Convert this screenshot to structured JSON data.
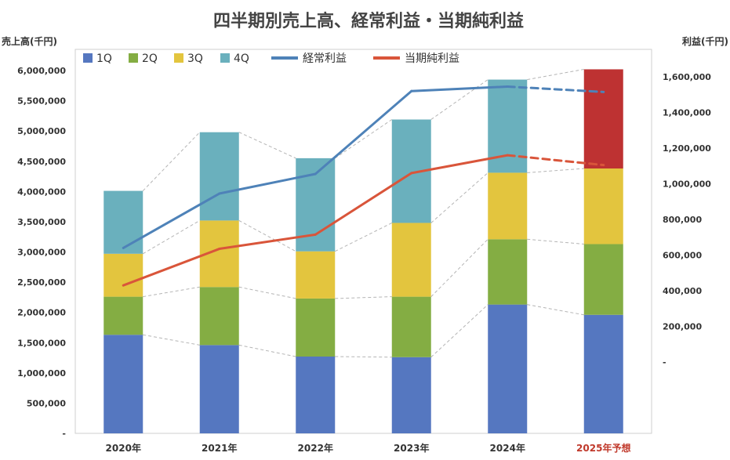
{
  "chart_data": {
    "type": "bar",
    "stacked": true,
    "title": "四半期別売上高、経常利益・当期純利益",
    "ylabel_left": "売上高(千円)",
    "ylabel_right": "利益(千円)",
    "categories": [
      "2020年",
      "2021年",
      "2022年",
      "2023年",
      "2024年",
      "2025年予想"
    ],
    "forecast_category": "2025年予想",
    "ylim_left": [
      0,
      6000000
    ],
    "yticks_left": [
      "-",
      "500,000",
      "1,000,000",
      "1,500,000",
      "2,000,000",
      "2,500,000",
      "3,000,000",
      "3,500,000",
      "4,000,000",
      "4,500,000",
      "5,000,000",
      "5,500,000",
      "6,000,000"
    ],
    "ylim_right": [
      0,
      1600000
    ],
    "yticks_right": [
      "-",
      "200,000",
      "400,000",
      "600,000",
      "800,000",
      "1,000,000",
      "1,200,000",
      "1,400,000",
      "1,600,000"
    ],
    "series": [
      {
        "name": "1Q",
        "axis": "left",
        "kind": "bar",
        "color": "#5577c0",
        "values": [
          1630000,
          1460000,
          1270000,
          1260000,
          2130000,
          1960000
        ]
      },
      {
        "name": "2Q",
        "axis": "left",
        "kind": "bar",
        "color": "#84ad43",
        "values": [
          630000,
          960000,
          960000,
          1000000,
          1080000,
          1170000
        ]
      },
      {
        "name": "3Q",
        "axis": "left",
        "kind": "bar",
        "color": "#e3c53e",
        "values": [
          710000,
          1100000,
          780000,
          1220000,
          1100000,
          1250000
        ]
      },
      {
        "name": "4Q",
        "axis": "left",
        "kind": "bar",
        "color": "#6ab0bd",
        "forecast_color": "#be3232",
        "values": [
          1040000,
          1460000,
          1540000,
          1710000,
          1540000,
          1640000
        ]
      },
      {
        "name": "経常利益",
        "axis": "right",
        "kind": "line",
        "color": "#4e82b8",
        "values": [
          640000,
          945000,
          1055000,
          1520000,
          1545000,
          1515000
        ]
      },
      {
        "name": "当期純利益",
        "axis": "right",
        "kind": "line",
        "color": "#d9553a",
        "values": [
          430000,
          635000,
          715000,
          1060000,
          1160000,
          1105000
        ]
      }
    ],
    "grid": false,
    "legend_position": "top-left"
  }
}
